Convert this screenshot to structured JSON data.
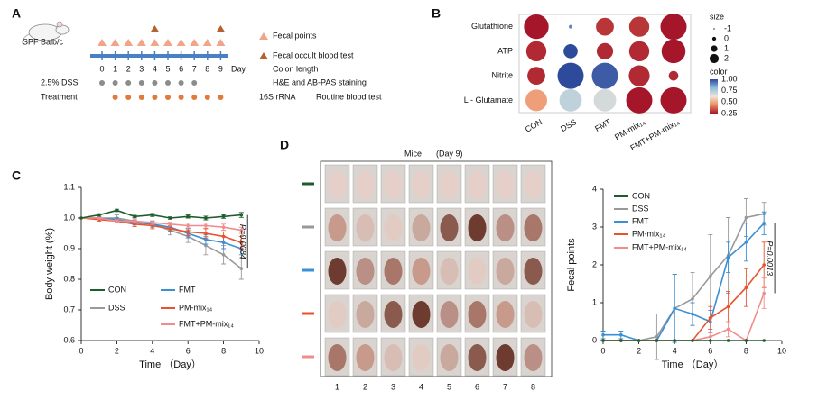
{
  "panels": [
    "A",
    "B",
    "C",
    "D"
  ],
  "schematic": {
    "strain": "SPF Balb/c",
    "days": [
      0,
      1,
      2,
      3,
      4,
      5,
      6,
      7,
      8,
      9
    ],
    "day_label": "Day",
    "rows": [
      "2.5% DSS",
      "Treatment"
    ],
    "legend": [
      "Fecal points",
      "Fecal occult blood test"
    ],
    "endpoints": [
      "Colon length",
      "H&E and AB-PAS staining",
      "16S rRNA",
      "Routine blood test"
    ]
  },
  "photo_grid": {
    "title": "Mice",
    "subtitle": "(Day 9)",
    "columns": [
      1,
      2,
      3,
      4,
      5,
      6,
      7,
      8
    ],
    "group_colors": [
      "#1e5c2e",
      "#999999",
      "#3b8fd4",
      "#e8532e",
      "#f08c8c"
    ]
  },
  "chart_data": [
    {
      "type": "bubble",
      "categories": [
        "CON",
        "DSS",
        "FMT",
        "PM-mix₁₄",
        "FMT+PM-mix₁₄"
      ],
      "series": [
        {
          "name": "Glutathione",
          "values": [
            0.25,
            0.9,
            0.3,
            0.3,
            0.25
          ],
          "sizes": [
            1.8,
            -1,
            0.9,
            1.2,
            2
          ]
        },
        {
          "name": "ATP",
          "values": [
            0.28,
            1.0,
            0.28,
            0.28,
            0.25
          ],
          "sizes": [
            1.2,
            0.4,
            0.7,
            1.2,
            1.7
          ]
        },
        {
          "name": "Nitrite",
          "values": [
            0.28,
            1.0,
            0.97,
            0.28,
            0.28
          ],
          "sizes": [
            0.9,
            2,
            2,
            1.3,
            -0.2
          ]
        },
        {
          "name": "L - Glutamate",
          "values": [
            0.48,
            0.72,
            0.68,
            0.25,
            0.25
          ],
          "sizes": [
            1.4,
            1.5,
            1.5,
            2,
            2
          ]
        }
      ],
      "size_title": "size",
      "size_lim": [
        -1,
        2
      ],
      "size_ticks": [
        -1,
        0,
        1,
        2
      ],
      "color_title": "color",
      "clim": [
        0.25,
        1
      ],
      "color_ticks": [
        {
          "value": 1,
          "label": "1.00"
        },
        0.75,
        {
          "value": 0.5,
          "label": "0.50"
        },
        0.25
      ],
      "colormap": [
        "#a5162a",
        "#ee8a5e",
        "#efe6d8",
        "#91bcdc",
        "#2e4a9b"
      ]
    },
    {
      "type": "line",
      "xlabel": "Time （Day）",
      "ylabel": "Body weight (%)",
      "x": [
        0,
        1,
        2,
        3,
        4,
        5,
        6,
        7,
        8,
        9
      ],
      "xlim": [
        0,
        10
      ],
      "xticks": [
        0,
        2,
        4,
        6,
        8,
        10
      ],
      "ylim": [
        0.6,
        1.1
      ],
      "yticks": [
        0.6,
        0.7,
        0.8,
        0.9,
        {
          "value": 1.0,
          "label": "1.0"
        },
        1.1
      ],
      "annotation": "P=0.0084",
      "series": [
        {
          "name": "CON",
          "color": "#1e5c2e",
          "values": [
            1.0,
            1.01,
            1.025,
            1.005,
            1.01,
            1.0,
            1.005,
            1.0,
            1.005,
            1.01
          ],
          "errors": [
            0,
            0.004,
            0.004,
            0.004,
            0.005,
            0.004,
            0.005,
            0.006,
            0.006,
            0.008
          ]
        },
        {
          "name": "DSS",
          "color": "#999999",
          "values": [
            1.0,
            1.0,
            1.0,
            0.99,
            0.98,
            0.96,
            0.94,
            0.91,
            0.88,
            0.835
          ],
          "errors": [
            0,
            0.01,
            0.01,
            0.01,
            0.01,
            0.015,
            0.02,
            0.03,
            0.03,
            0.035
          ]
        },
        {
          "name": "FMT",
          "color": "#3b8fd4",
          "values": [
            1.0,
            1.0,
            0.995,
            0.985,
            0.98,
            0.97,
            0.95,
            0.93,
            0.92,
            0.9
          ],
          "errors": [
            0,
            0.005,
            0.006,
            0.008,
            0.01,
            0.012,
            0.015,
            0.015,
            0.02,
            0.02
          ]
        },
        {
          "name": "PM-mix₁₄",
          "color": "#e8532e",
          "values": [
            1.0,
            0.995,
            0.99,
            0.98,
            0.975,
            0.965,
            0.955,
            0.95,
            0.94,
            0.92
          ],
          "errors": [
            0,
            0.005,
            0.006,
            0.008,
            0.01,
            0.01,
            0.012,
            0.015,
            0.015,
            0.02
          ]
        },
        {
          "name": "FMT+PM-mix₁₄",
          "color": "#f08c8c",
          "values": [
            1.0,
            1.0,
            0.99,
            0.99,
            0.985,
            0.98,
            0.975,
            0.975,
            0.97,
            0.96
          ],
          "errors": [
            0,
            0.004,
            0.005,
            0.005,
            0.006,
            0.006,
            0.008,
            0.008,
            0.01,
            0.01
          ]
        }
      ]
    },
    {
      "type": "line",
      "xlabel": "Time （Day）",
      "ylabel": "Fecal points",
      "x": [
        0,
        1,
        2,
        3,
        4,
        5,
        6,
        7,
        8,
        9
      ],
      "xlim": [
        0,
        10
      ],
      "xticks": [
        0,
        2,
        4,
        6,
        8,
        10
      ],
      "ylim": [
        0,
        4
      ],
      "yticks": [
        0,
        1,
        2,
        3,
        4
      ],
      "annotation": "P=0.0013",
      "series": [
        {
          "name": "CON",
          "color": "#1e5c2e",
          "values": [
            0,
            0,
            0,
            0,
            0,
            0,
            0,
            0,
            0,
            0
          ],
          "errors": [
            0,
            0,
            0,
            0,
            0,
            0,
            0,
            0,
            0,
            0
          ]
        },
        {
          "name": "DSS",
          "color": "#999999",
          "values": [
            0,
            0,
            0,
            0.1,
            0.85,
            1.1,
            1.7,
            2.25,
            3.25,
            3.35
          ],
          "errors": [
            0,
            0,
            0,
            0.6,
            0.9,
            0.7,
            1.1,
            1.0,
            0.5,
            0.3
          ]
        },
        {
          "name": "FMT",
          "color": "#3b8fd4",
          "values": [
            0.15,
            0.15,
            0,
            0,
            0.85,
            0.7,
            0.5,
            2.2,
            2.6,
            3.1
          ],
          "errors": [
            0.1,
            0.1,
            0,
            0,
            0.9,
            0.3,
            0.3,
            0.4,
            0.5,
            0.3
          ]
        },
        {
          "name": "PM-mix₁₄",
          "color": "#e8532e",
          "values": [
            0,
            0,
            0,
            0,
            0,
            0,
            0.6,
            0.9,
            1.4,
            2.0
          ],
          "errors": [
            0,
            0,
            0,
            0,
            0,
            0,
            0.3,
            0.4,
            0.5,
            0.6
          ]
        },
        {
          "name": "FMT+PM-mix₁₄",
          "color": "#f08c8c",
          "values": [
            0,
            0,
            0,
            0,
            0,
            0,
            0.1,
            0.3,
            0,
            1.25
          ],
          "errors": [
            0,
            0,
            0,
            0,
            0,
            0,
            0.1,
            0.2,
            0,
            0.4
          ]
        }
      ]
    }
  ]
}
